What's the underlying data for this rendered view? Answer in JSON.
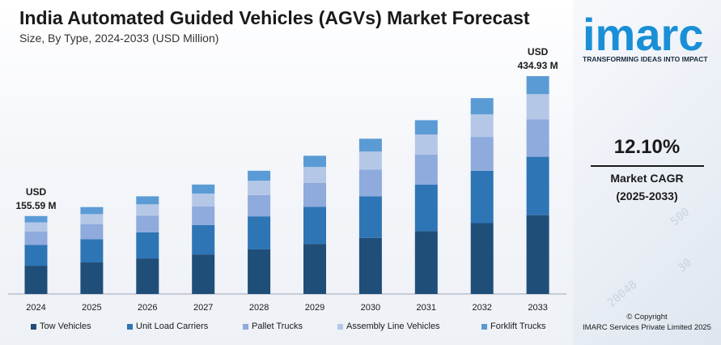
{
  "header": {
    "title": "India Automated Guided Vehicles (AGVs) Market Forecast",
    "subtitle": "Size, By Type, 2024-2033 (USD Million)"
  },
  "brand": {
    "logo_text": "imarc",
    "tagline": "TRANSFORMING IDEAS INTO IMPACT",
    "accent_color": "#1a8fd6"
  },
  "cagr": {
    "value": "12.10%",
    "label": "Market CAGR",
    "period": "(2025-2033)"
  },
  "copyright": {
    "line1": "© Copyright",
    "line2": "IMARC Services Private Limited 2025"
  },
  "annotations": {
    "first_unit": "USD",
    "first_value": "155.59 M",
    "last_unit": "USD",
    "last_value": "434.93 M"
  },
  "decor": [
    "500",
    "20048",
    "30"
  ],
  "chart_data": {
    "type": "bar",
    "stacked": true,
    "title": "India Automated Guided Vehicles (AGVs) Market Forecast",
    "categories": [
      "2024",
      "2025",
      "2026",
      "2027",
      "2028",
      "2029",
      "2030",
      "2031",
      "2032",
      "2033"
    ],
    "totals": [
      155.59,
      173.5,
      195,
      218.5,
      246,
      276,
      310,
      347,
      391,
      434.93
    ],
    "series": [
      {
        "name": "Tow Vehicles",
        "color": "#1f4e79",
        "values": [
          56.5,
          63,
          71,
          79,
          89,
          100,
          112,
          125.5,
          141.5,
          157.4
        ]
      },
      {
        "name": "Unit Load Carriers",
        "color": "#2e75b6",
        "values": [
          41.5,
          46.5,
          52,
          58.5,
          66,
          74,
          83,
          93,
          104.5,
          116.5
        ]
      },
      {
        "name": "Pallet Trucks",
        "color": "#8faadc",
        "values": [
          27,
          30,
          33.5,
          37.5,
          42.5,
          47.5,
          53.5,
          60,
          67.5,
          75
        ]
      },
      {
        "name": "Assembly Line Vehicles",
        "color": "#b4c7e7",
        "values": [
          18,
          20,
          22.5,
          25.5,
          28.5,
          32,
          36,
          40,
          45,
          50
        ]
      },
      {
        "name": "Forklift Trucks",
        "color": "#5b9bd5",
        "values": [
          12.59,
          14,
          16,
          18,
          20,
          22.5,
          25.5,
          28.5,
          32.5,
          36.03
        ]
      }
    ],
    "ylim": [
      0,
      434.93
    ],
    "grid": false,
    "legend_position": "bottom"
  }
}
